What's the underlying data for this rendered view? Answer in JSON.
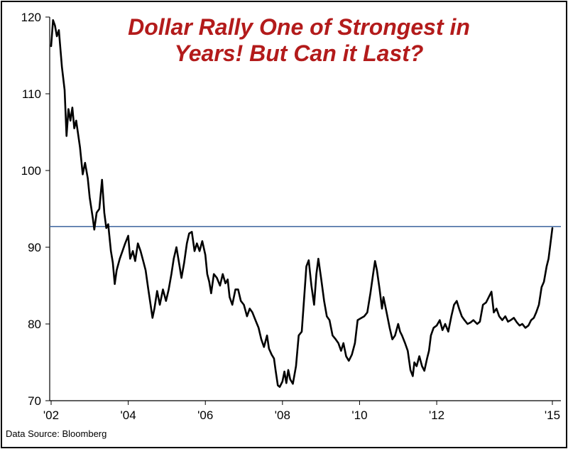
{
  "chart_data": {
    "type": "line",
    "title_lines": [
      "Dollar Rally One of Strongest in",
      "Years! But Can it Last?"
    ],
    "source": "Data Source:  Bloomberg",
    "xlabel": "",
    "ylabel": "",
    "ylim": [
      70,
      120
    ],
    "xlim": [
      2002.0,
      2015.0
    ],
    "yticks": [
      70,
      80,
      90,
      100,
      110,
      120
    ],
    "yticklabels": [
      "70",
      "80",
      "90",
      "100",
      "110",
      "120"
    ],
    "xticks": [
      2002,
      2004,
      2006,
      2008,
      2010,
      2012,
      2015
    ],
    "xticklabels": [
      "'02",
      "'04",
      "'06",
      "'08",
      "'10",
      "'12",
      "'15"
    ],
    "grid": false,
    "reference_line": {
      "y": 92.7,
      "color": "#4a6fa5"
    },
    "series": [
      {
        "color": "#000000",
        "points": [
          [
            2002.0,
            116.2
          ],
          [
            2002.05,
            119.6
          ],
          [
            2002.1,
            118.9
          ],
          [
            2002.15,
            117.5
          ],
          [
            2002.2,
            118.3
          ],
          [
            2002.28,
            113.5
          ],
          [
            2002.35,
            110.5
          ],
          [
            2002.4,
            104.5
          ],
          [
            2002.45,
            108.0
          ],
          [
            2002.5,
            106.5
          ],
          [
            2002.55,
            108.2
          ],
          [
            2002.6,
            105.5
          ],
          [
            2002.65,
            106.5
          ],
          [
            2002.75,
            103.0
          ],
          [
            2002.82,
            99.5
          ],
          [
            2002.88,
            101.0
          ],
          [
            2002.95,
            99.0
          ],
          [
            2003.0,
            96.5
          ],
          [
            2003.08,
            93.8
          ],
          [
            2003.12,
            92.3
          ],
          [
            2003.18,
            94.5
          ],
          [
            2003.25,
            95.0
          ],
          [
            2003.32,
            98.8
          ],
          [
            2003.38,
            94.5
          ],
          [
            2003.43,
            92.5
          ],
          [
            2003.48,
            93.0
          ],
          [
            2003.55,
            89.5
          ],
          [
            2003.6,
            88.0
          ],
          [
            2003.65,
            85.2
          ],
          [
            2003.7,
            87.0
          ],
          [
            2003.78,
            88.5
          ],
          [
            2003.85,
            89.5
          ],
          [
            2003.92,
            90.5
          ],
          [
            2004.0,
            91.5
          ],
          [
            2004.05,
            88.5
          ],
          [
            2004.12,
            89.5
          ],
          [
            2004.18,
            88.2
          ],
          [
            2004.25,
            90.5
          ],
          [
            2004.32,
            89.5
          ],
          [
            2004.4,
            88.0
          ],
          [
            2004.45,
            87.0
          ],
          [
            2004.52,
            84.5
          ],
          [
            2004.58,
            82.5
          ],
          [
            2004.63,
            80.8
          ],
          [
            2004.68,
            82.0
          ],
          [
            2004.75,
            84.3
          ],
          [
            2004.82,
            82.5
          ],
          [
            2004.9,
            84.5
          ],
          [
            2004.98,
            83.0
          ],
          [
            2005.05,
            84.5
          ],
          [
            2005.12,
            86.5
          ],
          [
            2005.18,
            88.5
          ],
          [
            2005.25,
            90.0
          ],
          [
            2005.3,
            88.5
          ],
          [
            2005.38,
            86.0
          ],
          [
            2005.45,
            88.0
          ],
          [
            2005.52,
            90.5
          ],
          [
            2005.58,
            91.8
          ],
          [
            2005.65,
            92.0
          ],
          [
            2005.72,
            89.5
          ],
          [
            2005.78,
            90.5
          ],
          [
            2005.85,
            89.5
          ],
          [
            2005.92,
            90.8
          ],
          [
            2006.0,
            89.0
          ],
          [
            2006.05,
            86.5
          ],
          [
            2006.1,
            85.5
          ],
          [
            2006.15,
            84.0
          ],
          [
            2006.22,
            86.5
          ],
          [
            2006.3,
            86.0
          ],
          [
            2006.38,
            85.0
          ],
          [
            2006.45,
            86.5
          ],
          [
            2006.52,
            85.3
          ],
          [
            2006.58,
            85.8
          ],
          [
            2006.63,
            83.5
          ],
          [
            2006.7,
            82.5
          ],
          [
            2006.78,
            84.5
          ],
          [
            2006.85,
            84.5
          ],
          [
            2006.92,
            83.0
          ],
          [
            2007.0,
            82.5
          ],
          [
            2007.08,
            81.0
          ],
          [
            2007.15,
            82.0
          ],
          [
            2007.22,
            81.5
          ],
          [
            2007.3,
            80.5
          ],
          [
            2007.38,
            79.5
          ],
          [
            2007.45,
            78.0
          ],
          [
            2007.52,
            77.0
          ],
          [
            2007.6,
            78.5
          ],
          [
            2007.65,
            76.8
          ],
          [
            2007.72,
            76.0
          ],
          [
            2007.78,
            75.5
          ],
          [
            2007.82,
            74.0
          ],
          [
            2007.88,
            72.0
          ],
          [
            2007.93,
            71.8
          ],
          [
            2008.0,
            72.5
          ],
          [
            2008.05,
            73.8
          ],
          [
            2008.1,
            72.3
          ],
          [
            2008.15,
            74.0
          ],
          [
            2008.2,
            72.8
          ],
          [
            2008.27,
            72.2
          ],
          [
            2008.35,
            74.5
          ],
          [
            2008.42,
            78.5
          ],
          [
            2008.5,
            79.0
          ],
          [
            2008.55,
            82.5
          ],
          [
            2008.62,
            87.5
          ],
          [
            2008.68,
            88.3
          ],
          [
            2008.75,
            85.0
          ],
          [
            2008.82,
            82.5
          ],
          [
            2008.88,
            86.5
          ],
          [
            2008.93,
            88.5
          ],
          [
            2009.0,
            86.0
          ],
          [
            2009.08,
            83.0
          ],
          [
            2009.15,
            81.0
          ],
          [
            2009.22,
            80.5
          ],
          [
            2009.3,
            78.5
          ],
          [
            2009.38,
            78.0
          ],
          [
            2009.45,
            77.5
          ],
          [
            2009.52,
            76.5
          ],
          [
            2009.58,
            77.5
          ],
          [
            2009.65,
            75.8
          ],
          [
            2009.72,
            75.2
          ],
          [
            2009.8,
            76.0
          ],
          [
            2009.88,
            77.5
          ],
          [
            2009.95,
            80.5
          ],
          [
            2010.05,
            80.8
          ],
          [
            2010.12,
            81.0
          ],
          [
            2010.2,
            81.5
          ],
          [
            2010.28,
            84.0
          ],
          [
            2010.35,
            86.5
          ],
          [
            2010.4,
            88.2
          ],
          [
            2010.45,
            87.0
          ],
          [
            2010.52,
            84.5
          ],
          [
            2010.58,
            82.0
          ],
          [
            2010.62,
            83.5
          ],
          [
            2010.7,
            81.5
          ],
          [
            2010.78,
            79.5
          ],
          [
            2010.85,
            78.0
          ],
          [
            2010.92,
            78.5
          ],
          [
            2011.0,
            80.0
          ],
          [
            2011.05,
            79.0
          ],
          [
            2011.1,
            78.5
          ],
          [
            2011.18,
            77.5
          ],
          [
            2011.25,
            76.5
          ],
          [
            2011.32,
            74.0
          ],
          [
            2011.38,
            73.2
          ],
          [
            2011.42,
            75.0
          ],
          [
            2011.48,
            74.5
          ],
          [
            2011.55,
            75.8
          ],
          [
            2011.62,
            74.5
          ],
          [
            2011.68,
            73.9
          ],
          [
            2011.75,
            75.5
          ],
          [
            2011.8,
            76.5
          ],
          [
            2011.85,
            78.5
          ],
          [
            2011.92,
            79.5
          ],
          [
            2012.0,
            79.8
          ],
          [
            2012.08,
            80.5
          ],
          [
            2012.15,
            79.2
          ],
          [
            2012.22,
            80.0
          ],
          [
            2012.3,
            79.0
          ],
          [
            2012.38,
            81.0
          ],
          [
            2012.45,
            82.5
          ],
          [
            2012.52,
            83.0
          ],
          [
            2012.58,
            82.0
          ],
          [
            2012.65,
            81.0
          ],
          [
            2012.72,
            80.5
          ],
          [
            2012.8,
            80.0
          ],
          [
            2012.88,
            80.2
          ],
          [
            2012.95,
            80.5
          ],
          [
            2013.05,
            80.0
          ],
          [
            2013.12,
            80.3
          ],
          [
            2013.2,
            82.5
          ],
          [
            2013.28,
            82.8
          ],
          [
            2013.35,
            83.5
          ],
          [
            2013.42,
            84.2
          ],
          [
            2013.48,
            81.5
          ],
          [
            2013.55,
            82.0
          ],
          [
            2013.62,
            81.0
          ],
          [
            2013.7,
            80.5
          ],
          [
            2013.78,
            81.0
          ],
          [
            2013.85,
            80.3
          ],
          [
            2013.92,
            80.5
          ],
          [
            2014.0,
            80.8
          ],
          [
            2014.08,
            80.2
          ],
          [
            2014.15,
            79.8
          ],
          [
            2014.22,
            80.0
          ],
          [
            2014.3,
            79.5
          ],
          [
            2014.38,
            79.8
          ],
          [
            2014.45,
            80.5
          ],
          [
            2014.52,
            80.8
          ],
          [
            2014.58,
            81.5
          ],
          [
            2014.65,
            82.5
          ],
          [
            2014.72,
            84.8
          ],
          [
            2014.78,
            85.5
          ],
          [
            2014.85,
            87.5
          ],
          [
            2014.9,
            88.5
          ],
          [
            2014.95,
            90.5
          ],
          [
            2015.0,
            92.5
          ]
        ]
      }
    ]
  }
}
